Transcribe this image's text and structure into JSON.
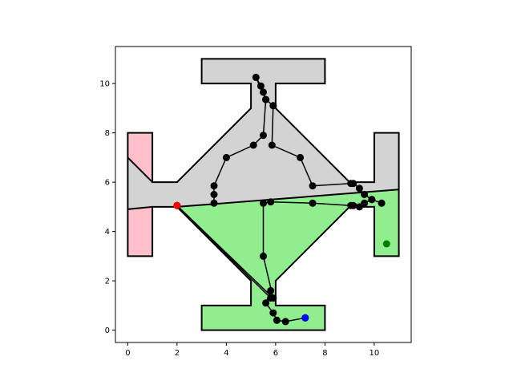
{
  "chart_data": {
    "type": "scatter",
    "title": "",
    "xlabel": "",
    "ylabel": "",
    "xlim": [
      -0.5,
      11.5
    ],
    "ylim": [
      -0.5,
      11.5
    ],
    "grid": false,
    "x_ticks": [
      "0",
      "2",
      "4",
      "6",
      "8",
      "10"
    ],
    "y_ticks": [
      "0",
      "2",
      "4",
      "6",
      "8",
      "10"
    ],
    "colors": {
      "region_gray": "#d3d3d3",
      "region_green": "#90ee90",
      "region_pink": "#ffc0cb",
      "outline": "#000000",
      "path": "#000000",
      "start": "#ff0000",
      "goal": "#0000ff",
      "target": "#008000"
    },
    "regions": [
      {
        "fill": "region_gray",
        "points": [
          [
            0,
            7
          ],
          [
            0,
            4.9
          ],
          [
            1,
            5
          ],
          [
            2,
            5
          ],
          [
            11,
            5.7
          ],
          [
            11,
            8
          ],
          [
            10,
            8
          ],
          [
            10,
            6
          ],
          [
            9,
            6
          ],
          [
            6,
            9
          ],
          [
            6,
            10
          ],
          [
            8,
            10
          ],
          [
            8,
            11
          ],
          [
            3,
            11
          ],
          [
            3,
            10
          ],
          [
            5,
            10
          ],
          [
            5,
            9
          ],
          [
            2,
            6
          ],
          [
            1,
            6
          ]
        ]
      },
      {
        "fill": "region_green",
        "points": [
          [
            2,
            5
          ],
          [
            11,
            5.7
          ],
          [
            11,
            3
          ],
          [
            10,
            3
          ],
          [
            10,
            5
          ],
          [
            9,
            5
          ],
          [
            6,
            2
          ],
          [
            6,
            1
          ],
          [
            8,
            1
          ],
          [
            8,
            0
          ],
          [
            3,
            0
          ],
          [
            3,
            1
          ],
          [
            5,
            1
          ],
          [
            5,
            2
          ]
        ]
      },
      {
        "fill": "region_pink",
        "points": [
          [
            0,
            8
          ],
          [
            1,
            8
          ],
          [
            1,
            6
          ],
          [
            0,
            7
          ]
        ]
      },
      {
        "fill": "region_pink",
        "points": [
          [
            0,
            4.9
          ],
          [
            1,
            5
          ],
          [
            1,
            3
          ],
          [
            0,
            3
          ]
        ]
      }
    ],
    "outer_boundary": [
      [
        0,
        8
      ],
      [
        1,
        8
      ],
      [
        1,
        6
      ],
      [
        2,
        6
      ],
      [
        5,
        9
      ],
      [
        5,
        10
      ],
      [
        3,
        10
      ],
      [
        3,
        11
      ],
      [
        8,
        11
      ],
      [
        8,
        10
      ],
      [
        6,
        10
      ],
      [
        6,
        9
      ],
      [
        9,
        6
      ],
      [
        10,
        6
      ],
      [
        10,
        8
      ],
      [
        11,
        8
      ],
      [
        11,
        3
      ],
      [
        10,
        3
      ],
      [
        10,
        5
      ],
      [
        9,
        5
      ],
      [
        6,
        2
      ],
      [
        6,
        1
      ],
      [
        8,
        1
      ],
      [
        8,
        0
      ],
      [
        3,
        0
      ],
      [
        3,
        1
      ],
      [
        5,
        1
      ],
      [
        5,
        2
      ],
      [
        2,
        5
      ],
      [
        1,
        5
      ],
      [
        1,
        3
      ],
      [
        0,
        3
      ]
    ],
    "inner_edges": [
      [
        [
          0,
          7
        ],
        [
          1,
          6
        ]
      ],
      [
        [
          0,
          4.9
        ],
        [
          1,
          5
        ]
      ],
      [
        [
          2,
          5
        ],
        [
          11,
          5.7
        ]
      ]
    ],
    "path_segments": [
      [
        [
          2,
          5.05
        ],
        [
          5.8,
          1.3
        ],
        [
          5.8,
          1.6
        ],
        [
          5.6,
          1.1
        ],
        [
          5.9,
          0.7
        ],
        [
          6.05,
          0.4
        ],
        [
          6.4,
          0.35
        ],
        [
          7.2,
          0.5
        ]
      ],
      [
        [
          2,
          5.05
        ],
        [
          5.9,
          1.3
        ],
        [
          5.5,
          3.0
        ],
        [
          5.5,
          5.15
        ],
        [
          5.8,
          5.2
        ],
        [
          7.5,
          5.15
        ],
        [
          9.05,
          5.05
        ],
        [
          9.15,
          5.05
        ],
        [
          9.4,
          5.0
        ],
        [
          9.6,
          5.15
        ],
        [
          9.9,
          5.3
        ],
        [
          10.3,
          5.15
        ]
      ],
      [
        [
          3.5,
          5.15
        ],
        [
          3.5,
          5.5
        ],
        [
          3.5,
          5.85
        ],
        [
          4.0,
          7.0
        ],
        [
          5.1,
          7.5
        ],
        [
          5.5,
          7.9
        ],
        [
          5.6,
          9.35
        ],
        [
          5.5,
          9.65
        ],
        [
          5.4,
          9.9
        ],
        [
          5.2,
          10.25
        ],
        [
          5.6,
          9.35
        ],
        [
          5.9,
          9.1
        ],
        [
          5.85,
          7.5
        ],
        [
          7.0,
          7.0
        ],
        [
          7.5,
          5.85
        ],
        [
          9.05,
          5.95
        ],
        [
          9.15,
          5.95
        ],
        [
          9.4,
          5.75
        ],
        [
          9.6,
          5.5
        ],
        [
          9.9,
          5.3
        ]
      ]
    ],
    "points": [
      {
        "x": 2,
        "y": 5.05,
        "color": "start"
      },
      {
        "x": 7.2,
        "y": 0.5,
        "color": "goal"
      },
      {
        "x": 10.5,
        "y": 3.5,
        "color": "target"
      }
    ]
  }
}
